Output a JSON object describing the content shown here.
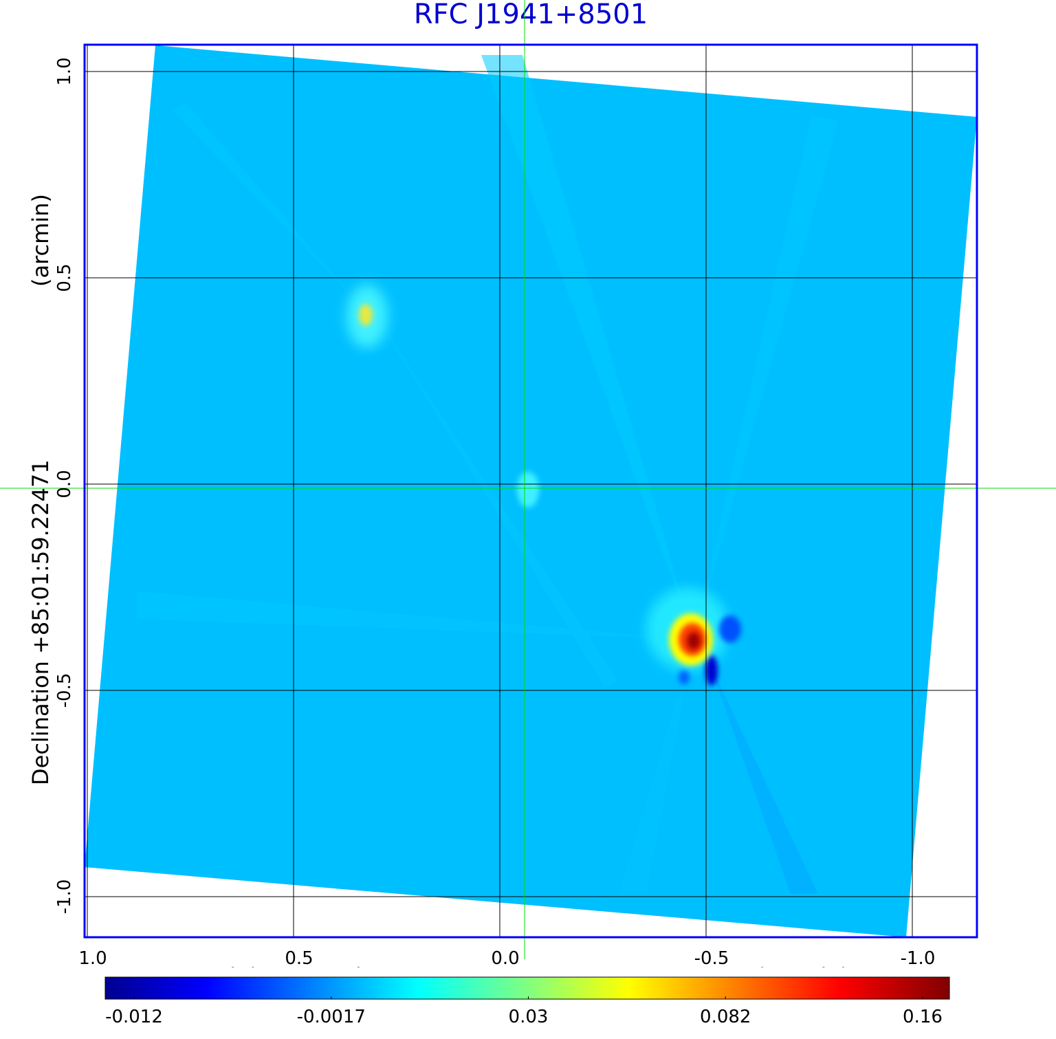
{
  "chart_data": {
    "type": "heatmap",
    "title": "RFC J1941+8501",
    "xlabel": "Right ascension  19:41:54.030474",
    "xlabel_unit": "(arcmin)",
    "ylabel": "Declination  +85:01:59.22471",
    "ylabel_unit": "(arcmin)",
    "xlim": [
      1.0,
      -1.0
    ],
    "ylim": [
      -1.0,
      1.0
    ],
    "x_ticks": [
      1.0,
      0.5,
      0.0,
      -0.5,
      -1.0
    ],
    "x_tick_labels": [
      "1.0",
      "0.5",
      "0.0",
      "-0.5",
      "-1.0"
    ],
    "y_ticks": [
      1.0,
      0.5,
      0.0,
      -0.5,
      -1.0
    ],
    "y_tick_labels": [
      "1.0",
      "0.5",
      "0.0",
      "-0.5",
      "-1.0"
    ],
    "grid": true,
    "crosshair": {
      "x": -0.06,
      "y": -0.01
    },
    "colormap": "jet",
    "colorbar": {
      "ticks": [
        -0.012,
        -0.0017,
        0.03,
        0.082,
        0.16
      ],
      "tick_labels": [
        "-0.012",
        "-0.0017",
        "0.03",
        "0.082",
        "0.16"
      ]
    },
    "sources": [
      {
        "x": 0.33,
        "y": 0.41,
        "peak": 0.06
      },
      {
        "x": -0.06,
        "y": -0.01,
        "peak": 0.02
      },
      {
        "x": -0.47,
        "y": -0.39,
        "peak": 0.16
      }
    ],
    "colors": {
      "frame": "#0000ff",
      "title": "#0000d0",
      "grid": "#000000",
      "crosshair": "#00dd00",
      "background_level": "#00bfff"
    }
  }
}
